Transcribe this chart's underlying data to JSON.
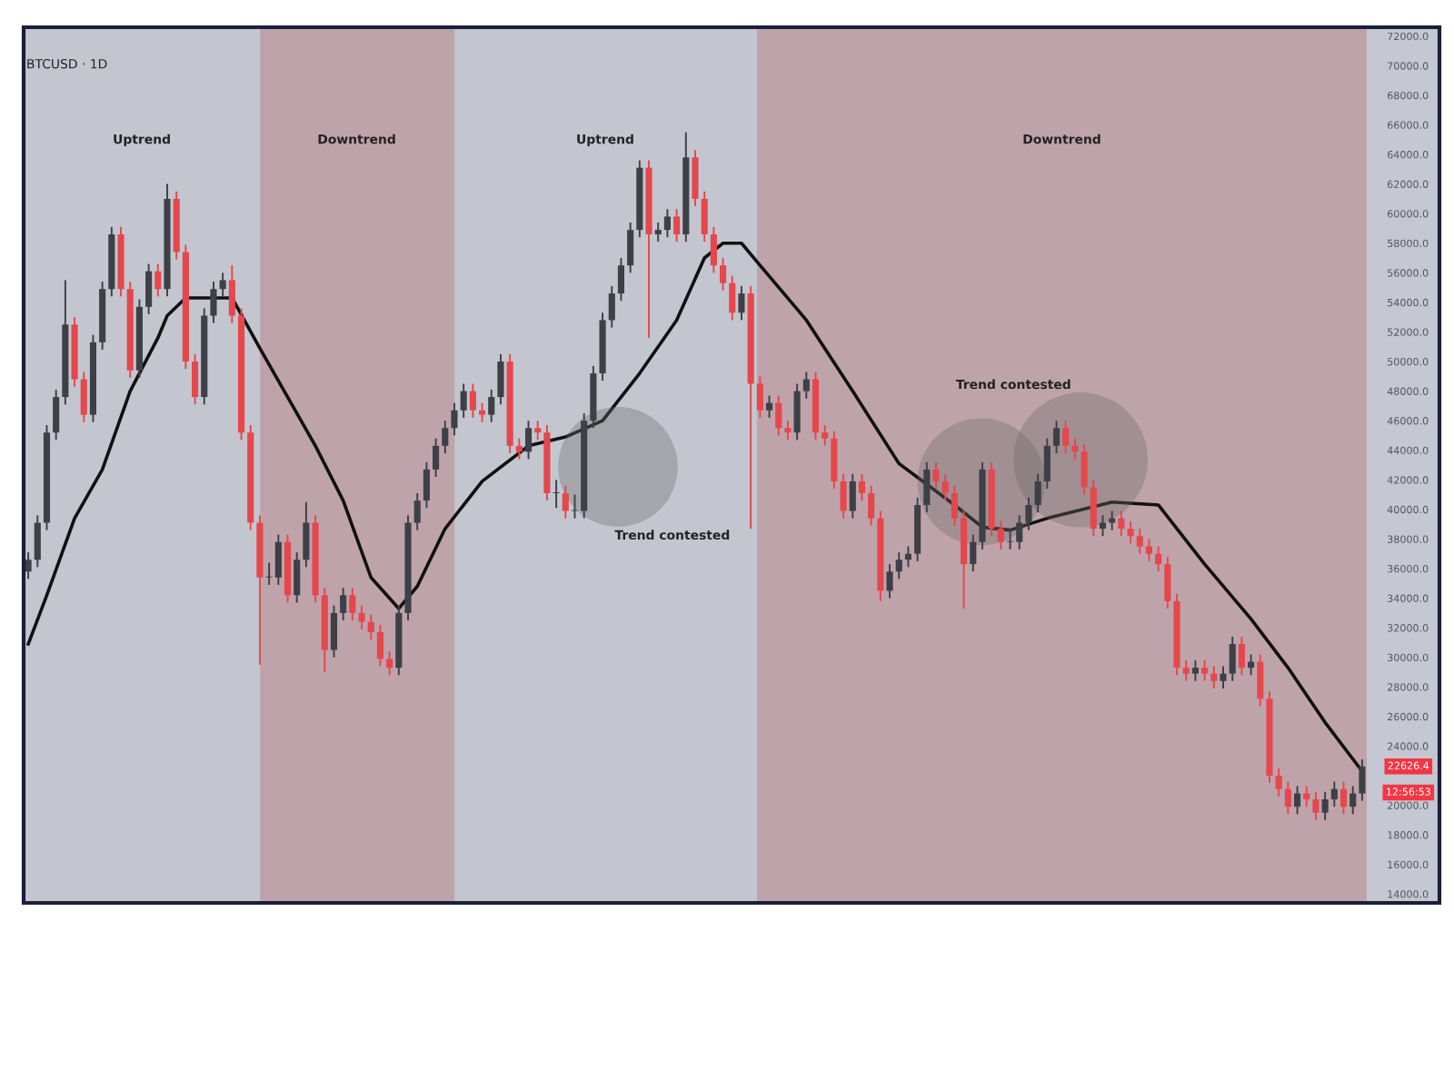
{
  "chart_data": {
    "type": "candlestick",
    "title": "BTCUSD · 1D",
    "categories": [
      null,
      null,
      null,
      null,
      null,
      null,
      null,
      null,
      null,
      null,
      null,
      null,
      null,
      null,
      null,
      null,
      null,
      null,
      null,
      null,
      null,
      null,
      null,
      null,
      null,
      null,
      null,
      null,
      null,
      null,
      null,
      null,
      null,
      null,
      null,
      null,
      null,
      null,
      null,
      null,
      null,
      null,
      null,
      null,
      null,
      null,
      null,
      null,
      null,
      null,
      null,
      null,
      null,
      null,
      null,
      null,
      null,
      null,
      null,
      null,
      null,
      null,
      null,
      null,
      null,
      null,
      null,
      null,
      null,
      null,
      null,
      null,
      null,
      null,
      null,
      null,
      null,
      null,
      null,
      null,
      null,
      null,
      null,
      null,
      null,
      null,
      null,
      null,
      null,
      null,
      null,
      null,
      null,
      null,
      null,
      null,
      null,
      null,
      null,
      null,
      null,
      null,
      null,
      null,
      null,
      null,
      null,
      null,
      null,
      null,
      null,
      null,
      null,
      null,
      null,
      null,
      null,
      null,
      null,
      null,
      null,
      null,
      null,
      null,
      null,
      null,
      null,
      null,
      null,
      null,
      null,
      null,
      null,
      null,
      null,
      null,
      null,
      null,
      null,
      null,
      null,
      null,
      null,
      null,
      null
    ],
    "ohlc": [
      [
        35800,
        37100,
        35300,
        36600
      ],
      [
        36600,
        39600,
        36100,
        39100
      ],
      [
        39100,
        45700,
        38600,
        45200
      ],
      [
        45200,
        48100,
        44700,
        47600
      ],
      [
        47600,
        55500,
        47100,
        52500
      ],
      [
        52500,
        53000,
        48300,
        48800
      ],
      [
        48800,
        49300,
        45900,
        46400
      ],
      [
        46400,
        51800,
        45900,
        51300
      ],
      [
        51300,
        55400,
        50800,
        54900
      ],
      [
        54900,
        59100,
        54400,
        58600
      ],
      [
        58600,
        59100,
        54400,
        54900
      ],
      [
        54900,
        55400,
        48900,
        49400
      ],
      [
        49400,
        54200,
        48900,
        53700
      ],
      [
        53700,
        56600,
        53200,
        56100
      ],
      [
        56100,
        56600,
        54400,
        54900
      ],
      [
        54900,
        62000,
        54400,
        61000
      ],
      [
        61000,
        61500,
        56900,
        57400
      ],
      [
        57400,
        57900,
        49500,
        50000
      ],
      [
        50000,
        50500,
        47100,
        47600
      ],
      [
        47600,
        53600,
        47100,
        53100
      ],
      [
        53100,
        55400,
        52600,
        54900
      ],
      [
        54900,
        56000,
        54400,
        55500
      ],
      [
        55500,
        56500,
        52600,
        53100
      ],
      [
        53100,
        53600,
        44700,
        45200
      ],
      [
        45200,
        45700,
        38600,
        39100
      ],
      [
        39100,
        39600,
        29500,
        35400
      ],
      [
        35400,
        36400,
        34900,
        35400
      ],
      [
        35400,
        38300,
        34900,
        37800
      ],
      [
        37800,
        38300,
        33700,
        34200
      ],
      [
        34200,
        37100,
        33700,
        36600
      ],
      [
        36600,
        40500,
        36100,
        39100
      ],
      [
        39100,
        39600,
        33700,
        34200
      ],
      [
        34200,
        34700,
        29000,
        30500
      ],
      [
        30500,
        33500,
        30000,
        33000
      ],
      [
        33000,
        34700,
        32500,
        34200
      ],
      [
        34200,
        34700,
        32500,
        33000
      ],
      [
        33000,
        33500,
        31900,
        32400
      ],
      [
        32400,
        32900,
        31200,
        31700
      ],
      [
        31700,
        32200,
        29400,
        29900
      ],
      [
        29900,
        30400,
        28800,
        29300
      ],
      [
        29300,
        33500,
        28800,
        33000
      ],
      [
        33000,
        39600,
        32500,
        39100
      ],
      [
        39100,
        41100,
        38600,
        40600
      ],
      [
        40600,
        43200,
        40100,
        42700
      ],
      [
        42700,
        44800,
        42200,
        44300
      ],
      [
        44300,
        46000,
        43800,
        45500
      ],
      [
        45500,
        47200,
        45000,
        46700
      ],
      [
        46700,
        48500,
        46200,
        48000
      ],
      [
        48000,
        48500,
        46200,
        46700
      ],
      [
        46700,
        47200,
        45900,
        46400
      ],
      [
        46400,
        48100,
        45900,
        47600
      ],
      [
        47600,
        50500,
        47100,
        50000
      ],
      [
        50000,
        50500,
        43800,
        44300
      ],
      [
        44300,
        44800,
        43400,
        43900
      ],
      [
        43900,
        46000,
        43400,
        45500
      ],
      [
        45500,
        46000,
        44700,
        45200
      ],
      [
        45200,
        45700,
        40600,
        41100
      ],
      [
        41100,
        42000,
        40100,
        41100
      ],
      [
        41100,
        41600,
        39400,
        39900
      ],
      [
        39900,
        41000,
        39400,
        39900
      ],
      [
        39900,
        46500,
        39400,
        46000
      ],
      [
        46000,
        49700,
        45500,
        49200
      ],
      [
        49200,
        53300,
        48700,
        52800
      ],
      [
        52800,
        55100,
        52300,
        54600
      ],
      [
        54600,
        57000,
        54100,
        56500
      ],
      [
        56500,
        59400,
        56000,
        58900
      ],
      [
        58900,
        63600,
        58400,
        63100
      ],
      [
        63100,
        63600,
        51600,
        58600
      ],
      [
        58600,
        59400,
        58100,
        58900
      ],
      [
        58900,
        60300,
        58400,
        59800
      ],
      [
        59800,
        60300,
        58100,
        58600
      ],
      [
        58600,
        65500,
        58100,
        63800
      ],
      [
        63800,
        64300,
        60500,
        61000
      ],
      [
        61000,
        61500,
        58100,
        58600
      ],
      [
        58600,
        59100,
        56000,
        56500
      ],
      [
        56500,
        57000,
        54800,
        55300
      ],
      [
        55300,
        55800,
        52800,
        53300
      ],
      [
        53300,
        55100,
        52800,
        54600
      ],
      [
        54600,
        55100,
        38700,
        48500
      ],
      [
        48500,
        49000,
        46200,
        46700
      ],
      [
        46700,
        47700,
        46200,
        47200
      ],
      [
        47200,
        47700,
        45000,
        45500
      ],
      [
        45500,
        46000,
        44700,
        45200
      ],
      [
        45200,
        48500,
        44700,
        48000
      ],
      [
        48000,
        49300,
        47500,
        48800
      ],
      [
        48800,
        49300,
        44700,
        45200
      ],
      [
        45200,
        45700,
        44300,
        44800
      ],
      [
        44800,
        45300,
        41400,
        41900
      ],
      [
        41900,
        42400,
        39400,
        39900
      ],
      [
        39900,
        42400,
        39400,
        41900
      ],
      [
        41900,
        42400,
        40600,
        41100
      ],
      [
        41100,
        41600,
        38900,
        39400
      ],
      [
        39400,
        39900,
        33800,
        34500
      ],
      [
        34500,
        36300,
        34000,
        35800
      ],
      [
        35800,
        37100,
        35300,
        36600
      ],
      [
        36600,
        37500,
        36100,
        37000
      ],
      [
        37000,
        40800,
        36500,
        40300
      ],
      [
        40300,
        43200,
        39800,
        42700
      ],
      [
        42700,
        43200,
        41400,
        41900
      ],
      [
        41900,
        42400,
        40600,
        41100
      ],
      [
        41100,
        41600,
        38900,
        39400
      ],
      [
        39400,
        39900,
        33300,
        36300
      ],
      [
        36300,
        38300,
        35800,
        37800
      ],
      [
        37800,
        43200,
        37300,
        42700
      ],
      [
        42700,
        43200,
        38200,
        38700
      ],
      [
        38700,
        39200,
        37300,
        37800
      ],
      [
        37800,
        38700,
        37300,
        37800
      ],
      [
        37800,
        39600,
        37300,
        39100
      ],
      [
        39100,
        40800,
        38600,
        40300
      ],
      [
        40300,
        42400,
        39800,
        41900
      ],
      [
        41900,
        44800,
        41400,
        44300
      ],
      [
        44300,
        46000,
        43800,
        45500
      ],
      [
        45500,
        46000,
        43800,
        44300
      ],
      [
        44300,
        44800,
        43400,
        43900
      ],
      [
        43900,
        44400,
        41000,
        41500
      ],
      [
        41500,
        42000,
        38200,
        38700
      ],
      [
        38700,
        39600,
        38200,
        39100
      ],
      [
        39100,
        39900,
        38600,
        39400
      ],
      [
        39400,
        39900,
        38200,
        38700
      ],
      [
        38700,
        39200,
        37700,
        38200
      ],
      [
        38200,
        38700,
        37000,
        37500
      ],
      [
        37500,
        38000,
        36500,
        37000
      ],
      [
        37000,
        37500,
        35800,
        36300
      ],
      [
        36300,
        36800,
        33300,
        33800
      ],
      [
        33800,
        34300,
        28800,
        29300
      ],
      [
        29300,
        29800,
        28400,
        28900
      ],
      [
        28900,
        29800,
        28400,
        29300
      ],
      [
        29300,
        29800,
        28400,
        28900
      ],
      [
        28900,
        29400,
        27900,
        28400
      ],
      [
        28400,
        29400,
        27900,
        28900
      ],
      [
        28900,
        31400,
        28400,
        30900
      ],
      [
        30900,
        31400,
        28800,
        29300
      ],
      [
        29300,
        30200,
        28800,
        29700
      ],
      [
        29700,
        30200,
        26700,
        27200
      ],
      [
        27200,
        27700,
        21500,
        22000
      ],
      [
        22000,
        22500,
        20600,
        21100
      ],
      [
        21100,
        21600,
        19400,
        19900
      ],
      [
        19900,
        21300,
        19400,
        20800
      ],
      [
        20800,
        21300,
        19900,
        20400
      ],
      [
        20400,
        20900,
        19000,
        19500
      ],
      [
        19500,
        20900,
        19000,
        20400
      ],
      [
        20400,
        21600,
        19900,
        21100
      ],
      [
        21100,
        21600,
        19400,
        19900
      ],
      [
        19900,
        21300,
        19400,
        20800
      ],
      [
        20800,
        23100,
        20300,
        22626.4
      ]
    ],
    "series": [
      {
        "type": "line",
        "color": "#111111",
        "values": [
          30900,
          null,
          34200,
          null,
          null,
          39400,
          null,
          null,
          42700,
          null,
          null,
          48000,
          null,
          null,
          51600,
          53100,
          null,
          54300,
          null,
          null,
          null,
          null,
          54300,
          null,
          null,
          50900,
          null,
          null,
          null,
          null,
          null,
          44300,
          null,
          null,
          40600,
          null,
          null,
          35400,
          null,
          null,
          33300,
          null,
          34800,
          null,
          null,
          38700,
          null,
          null,
          null,
          41900,
          null,
          null,
          null,
          null,
          44300,
          null,
          null,
          null,
          44900,
          null,
          null,
          null,
          46000,
          null,
          null,
          null,
          49200,
          null,
          null,
          null,
          52800,
          null,
          null,
          57000,
          null,
          58000,
          null,
          58000,
          null,
          56500,
          null,
          null,
          null,
          null,
          52800,
          null,
          null,
          null,
          null,
          48000,
          null,
          null,
          null,
          null,
          43100,
          null,
          null,
          null,
          null,
          null,
          40300,
          null,
          null,
          38800,
          null,
          null,
          38600,
          null,
          null,
          null,
          39400,
          null,
          null,
          null,
          null,
          null,
          null,
          40500,
          null,
          null,
          null,
          null,
          40300,
          null,
          null,
          null,
          null,
          36300,
          null,
          null,
          null,
          null,
          32600,
          null,
          null,
          null,
          29300,
          null,
          null,
          null,
          25600,
          null,
          null,
          null,
          22300
        ]
      }
    ],
    "annotations": [
      "Uptrend",
      "Downtrend",
      "Uptrend",
      "Downtrend",
      "Trend contested",
      "Trend contested",
      "22626.4",
      "12:56:53"
    ],
    "ylim": [
      13400,
      72600
    ],
    "yticks": [
      {
        "value": 14000,
        "label": "14000.0"
      },
      {
        "value": 16000,
        "label": "16000.0"
      },
      {
        "value": 18000,
        "label": "18000.0"
      },
      {
        "value": 20000,
        "label": "20000.0"
      },
      {
        "value": 24000,
        "label": "24000.0"
      },
      {
        "value": 26000,
        "label": "26000.0"
      },
      {
        "value": 28000,
        "label": "28000.0"
      },
      {
        "value": 30000,
        "label": "30000.0"
      },
      {
        "value": 32000,
        "label": "32000.0"
      },
      {
        "value": 34000,
        "label": "34000.0"
      },
      {
        "value": 36000,
        "label": "36000.0"
      },
      {
        "value": 38000,
        "label": "38000.0"
      },
      {
        "value": 40000,
        "label": "40000.0"
      },
      {
        "value": 42000,
        "label": "42000.0"
      },
      {
        "value": 44000,
        "label": "44000.0"
      },
      {
        "value": 46000,
        "label": "46000.0"
      },
      {
        "value": 48000,
        "label": "48000.0"
      },
      {
        "value": 50000,
        "label": "50000.0"
      },
      {
        "value": 52000,
        "label": "52000.0"
      },
      {
        "value": 54000,
        "label": "54000.0"
      },
      {
        "value": 56000,
        "label": "56000.0"
      },
      {
        "value": 58000,
        "label": "58000.0"
      },
      {
        "value": 60000,
        "label": "60000.0"
      },
      {
        "value": 62000,
        "label": "62000.0"
      },
      {
        "value": 64000,
        "label": "64000.0"
      },
      {
        "value": 66000,
        "label": "66000.0"
      },
      {
        "value": 68000,
        "label": "68000.0"
      },
      {
        "value": 70000,
        "label": "70000.0"
      },
      {
        "value": 72000,
        "label": "72000.0"
      }
    ],
    "tick_labels": "y",
    "grid": false,
    "legend": false
  }
}
